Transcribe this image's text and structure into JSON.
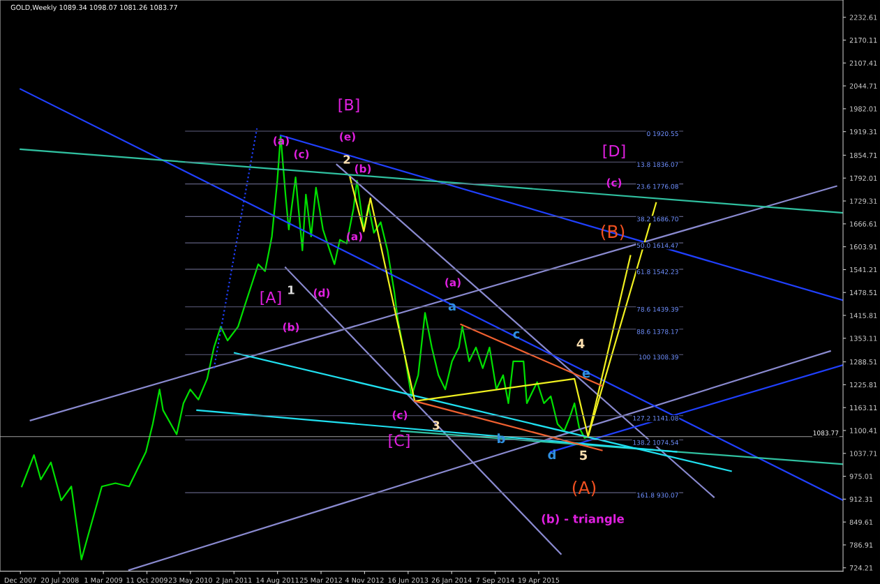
{
  "chart_data": {
    "type": "line",
    "title": "GOLD,Weekly 1089.34 1098.07 1081.26 1083.77",
    "xlim": [
      "2007-09-16",
      "2019-08-02"
    ],
    "ylim": [
      715,
      2280
    ],
    "xticks": [
      {
        "value": "2007-12-30",
        "label": "Dec 2007"
      },
      {
        "value": "2008-07-20",
        "label": "20 Jul 2008"
      },
      {
        "value": "2009-03-01",
        "label": "1 Mar 2009"
      },
      {
        "value": "2009-10-11",
        "label": "11 Oct 2009"
      },
      {
        "value": "2010-05-23",
        "label": "23 May 2010"
      },
      {
        "value": "2011-01-02",
        "label": "2 Jan 2011"
      },
      {
        "value": "2011-08-14",
        "label": "14 Aug 2011"
      },
      {
        "value": "2012-03-25",
        "label": "25 Mar 2012"
      },
      {
        "value": "2012-11-04",
        "label": "4 Nov 2012"
      },
      {
        "value": "2013-06-16",
        "label": "16 Jun 2013"
      },
      {
        "value": "2014-01-26",
        "label": "26 Jan 2014"
      },
      {
        "value": "2014-09-07",
        "label": "7 Sep 2014"
      },
      {
        "value": "2015-04-19",
        "label": "19 Apr 2015"
      }
    ],
    "yticks": [
      {
        "value": 724.21,
        "label": "724.21"
      },
      {
        "value": 786.91,
        "label": "786.91"
      },
      {
        "value": 849.61,
        "label": "849.61"
      },
      {
        "value": 912.31,
        "label": "912.31"
      },
      {
        "value": 975.01,
        "label": "975.01"
      },
      {
        "value": 1037.71,
        "label": "1037.71"
      },
      {
        "value": 1100.41,
        "label": "1100.41"
      },
      {
        "value": 1163.11,
        "label": "1163.11"
      },
      {
        "value": 1225.81,
        "label": "1225.81"
      },
      {
        "value": 1288.51,
        "label": "1288.51"
      },
      {
        "value": 1353.11,
        "label": "1353.11"
      },
      {
        "value": 1415.81,
        "label": "1415.81"
      },
      {
        "value": 1478.51,
        "label": "1478.51"
      },
      {
        "value": 1541.21,
        "label": "1541.21"
      },
      {
        "value": 1603.91,
        "label": "1603.91"
      },
      {
        "value": 1666.61,
        "label": "1666.61"
      },
      {
        "value": 1729.31,
        "label": "1729.31"
      },
      {
        "value": 1792.01,
        "label": "1792.01"
      },
      {
        "value": 1854.71,
        "label": "1854.71"
      },
      {
        "value": 1919.31,
        "label": "1919.31"
      },
      {
        "value": 1982.01,
        "label": "1982.01"
      },
      {
        "value": 2044.71,
        "label": "2044.71"
      },
      {
        "value": 2107.41,
        "label": "2107.41"
      },
      {
        "value": 2170.11,
        "label": "2170.11"
      },
      {
        "value": 2232.61,
        "label": "2232.61"
      }
    ],
    "grid": false,
    "legend": false,
    "series": [
      {
        "color": "#00e000",
        "line_style": "solid",
        "x": [
          "2008-01-06",
          "2008-03-09",
          "2008-04-13",
          "2008-06-04",
          "2008-07-27",
          "2008-09-17",
          "2008-11-08",
          "2008-12-13",
          "2009-02-21",
          "2009-05-02",
          "2009-07-11",
          "2009-10-06",
          "2009-11-10",
          "2009-12-15",
          "2010-01-02",
          "2010-03-13",
          "2010-04-17",
          "2010-05-22",
          "2010-07-03",
          "2010-08-17",
          "2010-09-21",
          "2010-10-26",
          "2010-11-30",
          "2011-01-23",
          "2011-02-26",
          "2011-04-02",
          "2011-05-07",
          "2011-06-11",
          "2011-07-16",
          "2011-08-13",
          "2011-08-30",
          "2011-09-24",
          "2011-10-11",
          "2011-11-15",
          "2011-12-20",
          "2012-01-07",
          "2012-02-03",
          "2012-02-28",
          "2012-04-04",
          "2012-05-09",
          "2012-06-02",
          "2012-06-30",
          "2012-08-04",
          "2012-09-08",
          "2012-09-26",
          "2012-10-31",
          "2012-11-24",
          "2012-12-22",
          "2013-01-26",
          "2013-03-02",
          "2013-04-06",
          "2013-04-24",
          "2013-05-29",
          "2013-07-03",
          "2013-08-07",
          "2013-09-11",
          "2013-10-16",
          "2013-11-19",
          "2013-12-24",
          "2014-01-28",
          "2014-03-04",
          "2014-03-22",
          "2014-04-26",
          "2014-05-31",
          "2014-07-05",
          "2014-08-09",
          "2014-09-13",
          "2014-10-18",
          "2014-11-14",
          "2014-12-09",
          "2015-01-31",
          "2015-02-17",
          "2015-04-11",
          "2015-05-16",
          "2015-06-20",
          "2015-07-25",
          "2015-08-28",
          "2015-09-26",
          "2015-10-20",
          "2015-11-13",
          "2015-12-11",
          "2015-12-29"
        ],
        "values": [
          947,
          1033,
          966,
          1013,
          909,
          947,
          747,
          814,
          947,
          956,
          947,
          1042,
          1118,
          1213,
          1156,
          1090,
          1175,
          1213,
          1185,
          1242,
          1328,
          1385,
          1347,
          1385,
          1442,
          1499,
          1556,
          1537,
          1632,
          1785,
          1909,
          1747,
          1651,
          1794,
          1594,
          1747,
          1632,
          1766,
          1651,
          1594,
          1556,
          1623,
          1613,
          1709,
          1785,
          1651,
          1718,
          1642,
          1671,
          1594,
          1480,
          1404,
          1309,
          1194,
          1252,
          1423,
          1328,
          1252,
          1213,
          1290,
          1328,
          1385,
          1290,
          1328,
          1271,
          1328,
          1213,
          1252,
          1175,
          1290,
          1290,
          1175,
          1233,
          1175,
          1194,
          1118,
          1099,
          1137,
          1175,
          1109,
          1080,
          1084
        ]
      },
      {
        "color": "#8a8ad0",
        "line_style": "solid",
        "x": [
          "2008-02-20",
          "2019-06-29"
        ],
        "values": [
          1128,
          1770
        ]
      },
      {
        "color": "#8a8ad0",
        "line_style": "solid",
        "x": [
          "2009-07-11",
          "2019-05-28"
        ],
        "values": [
          718,
          1318
        ]
      },
      {
        "color": "#8a8ad0",
        "line_style": "solid",
        "x": [
          "2012-06-14",
          "2017-10-06"
        ],
        "values": [
          1829,
          918
        ]
      },
      {
        "color": "#8a8ad0",
        "line_style": "solid",
        "x": [
          "2011-09-24",
          "2015-08-11"
        ],
        "values": [
          1547,
          762
        ]
      },
      {
        "color": "#2040ff",
        "line_style": "solid",
        "x": [
          "2007-12-30",
          "2019-08-02"
        ],
        "values": [
          2036,
          909
        ]
      },
      {
        "color": "#2040ff",
        "line_style": "solid",
        "x": [
          "2011-08-30",
          "2019-08-02"
        ],
        "values": [
          1909,
          1457
        ]
      },
      {
        "color": "#2040ff",
        "line_style": "solid",
        "x": [
          "2015-06-20",
          "2019-08-02"
        ],
        "values": [
          1042,
          1280
        ]
      },
      {
        "color": "#2040ff",
        "line_style": "dotted",
        "x": [
          "2010-09-21",
          "2011-04-30"
        ],
        "values": [
          1271,
          1928
        ]
      },
      {
        "color": "#30c0a0",
        "line_style": "solid",
        "x": [
          "2007-12-30",
          "2019-08-02"
        ],
        "values": [
          1871,
          1697
        ]
      },
      {
        "color": "#30c0a0",
        "line_style": "solid",
        "x": [
          "2013-05-11",
          "2019-08-02"
        ],
        "values": [
          1099,
          1008
        ]
      },
      {
        "color": "#20e0f0",
        "line_style": "solid",
        "x": [
          "2011-01-05",
          "2018-01-03"
        ],
        "values": [
          1313,
          989
        ]
      },
      {
        "color": "#20e0f0",
        "line_style": "solid",
        "x": [
          "2010-06-26",
          "2017-03-28"
        ],
        "values": [
          1156,
          1042
        ]
      },
      {
        "color": "#f0f020",
        "line_style": "solid",
        "x": [
          "2012-08-21",
          "2012-10-31",
          "2012-12-04",
          "2013-07-20",
          "2015-10-20",
          "2015-12-29",
          "2016-12-13"
        ],
        "values": [
          1794,
          1646,
          1737,
          1181,
          1242,
          1084,
          1724
        ]
      },
      {
        "color": "#f0f020",
        "line_style": "solid",
        "x": [
          "2015-12-29",
          "2016-08-03"
        ],
        "values": [
          1084,
          1579
        ]
      },
      {
        "color": "#f06030",
        "line_style": "solid",
        "x": [
          "2014-03-15",
          "2016-03-09"
        ],
        "values": [
          1391,
          1223
        ]
      },
      {
        "color": "#f06030",
        "line_style": "solid",
        "x": [
          "2013-07-20",
          "2016-03-09"
        ],
        "values": [
          1181,
          1046
        ]
      }
    ],
    "ref_lines": [
      {
        "axis": "y",
        "value": 1920.55,
        "label": "0 1920.55",
        "color": "#606080"
      },
      {
        "axis": "y",
        "value": 1836.07,
        "label": "13.8 1836.07",
        "color": "#606080"
      },
      {
        "axis": "y",
        "value": 1776.08,
        "label": "23.6 1776.08",
        "color": "#606080"
      },
      {
        "axis": "y",
        "value": 1686.7,
        "label": "38.2 1686.70",
        "color": "#606080"
      },
      {
        "axis": "y",
        "value": 1614.47,
        "label": "50.0 1614.47",
        "color": "#606080"
      },
      {
        "axis": "y",
        "value": 1542.23,
        "label": "61.8 1542.23",
        "color": "#606080"
      },
      {
        "axis": "y",
        "value": 1439.39,
        "label": "78.6 1439.39",
        "color": "#606080"
      },
      {
        "axis": "y",
        "value": 1378.17,
        "label": "88.6 1378.17",
        "color": "#606080"
      },
      {
        "axis": "y",
        "value": 1308.39,
        "label": "100 1308.39",
        "color": "#606080"
      },
      {
        "axis": "y",
        "value": 1141.08,
        "label": "127.2 1141.08",
        "color": "#606080"
      },
      {
        "axis": "y",
        "value": 1074.54,
        "label": "138.2 1074.54",
        "color": "#606080"
      },
      {
        "axis": "y",
        "value": 930.07,
        "label": "161.8 930.07",
        "color": "#606080"
      },
      {
        "axis": "y",
        "value": 1083.77,
        "label": "1083.77",
        "color": "#a0a0a0"
      }
    ],
    "annotations": [
      "[B]",
      "(a)",
      "(c)",
      "(e)",
      "2",
      "(b)",
      "(a)",
      "[A]",
      "1",
      "(d)",
      "(b)",
      "(a)",
      "a",
      "c",
      "4",
      "e",
      "(c)",
      "3",
      "[C]",
      "b",
      "d",
      "5",
      "(A)",
      "(b) - triangle",
      "[D]",
      "(c)",
      "(B)"
    ]
  }
}
